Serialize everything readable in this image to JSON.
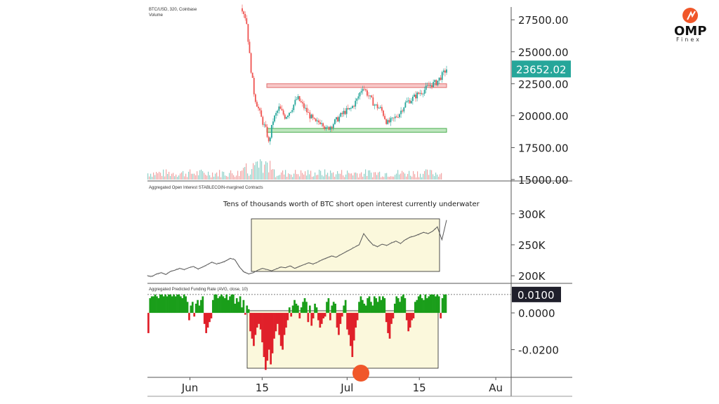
{
  "brand": {
    "name": "OMP",
    "sub": "Finex"
  },
  "chart_data": [
    {
      "type": "candlestick",
      "title": "BTC/USD, 320, Coinbase",
      "subtitle": "Volume",
      "ylim": [
        15000,
        28500
      ],
      "y_ticks": [
        "27500.00",
        "25000.00",
        "22500.00",
        "20000.00",
        "17500.00",
        "15000.00"
      ],
      "y_tick_values": [
        27500,
        25000,
        22500,
        20000,
        17500,
        15000
      ],
      "last_price": "23652.02",
      "last_price_value": 23652.02,
      "last_price_color": "#26a69a",
      "resistance_zone": [
        22200,
        22500
      ],
      "support_zone": [
        18700,
        19000
      ],
      "price_path": [
        [
          0.0,
          28400
        ],
        [
          0.02,
          27500
        ],
        [
          0.04,
          24000
        ],
        [
          0.06,
          21500
        ],
        [
          0.08,
          20500
        ],
        [
          0.1,
          19500
        ],
        [
          0.12,
          18700
        ],
        [
          0.13,
          17800
        ],
        [
          0.15,
          19600
        ],
        [
          0.18,
          20600
        ],
        [
          0.21,
          19900
        ],
        [
          0.24,
          20500
        ],
        [
          0.27,
          21400
        ],
        [
          0.3,
          20700
        ],
        [
          0.33,
          20000
        ],
        [
          0.36,
          19400
        ],
        [
          0.39,
          19600
        ],
        [
          0.41,
          18900
        ],
        [
          0.44,
          19300
        ],
        [
          0.47,
          19800
        ],
        [
          0.5,
          20300
        ],
        [
          0.53,
          20500
        ],
        [
          0.56,
          21200
        ],
        [
          0.59,
          22300
        ],
        [
          0.62,
          21500
        ],
        [
          0.65,
          20800
        ],
        [
          0.68,
          20500
        ],
        [
          0.71,
          19400
        ],
        [
          0.74,
          19700
        ],
        [
          0.77,
          20200
        ],
        [
          0.8,
          21000
        ],
        [
          0.83,
          21300
        ],
        [
          0.86,
          21700
        ],
        [
          0.89,
          22000
        ],
        [
          0.92,
          22400
        ],
        [
          0.95,
          22600
        ],
        [
          0.98,
          23200
        ],
        [
          1.0,
          23650
        ]
      ]
    },
    {
      "type": "line",
      "title": "Aggregated Open Interest STABLECOIN-margined Contracts",
      "annotation": "Tens of thousands worth of BTC short open interest currently underwater",
      "ylim": [
        190000,
        310000
      ],
      "y_ticks": [
        "300K",
        "250K",
        "200K"
      ],
      "y_tick_values": [
        300000,
        250000,
        200000
      ],
      "highlight_x": [
        0.35,
        0.97
      ],
      "series": [
        {
          "values": [
            200000,
            199000,
            203000,
            205000,
            202000,
            207000,
            209000,
            212000,
            210000,
            213000,
            215000,
            211000,
            214000,
            218000,
            222000,
            219000,
            221000,
            224000,
            228000,
            226000,
            214000,
            206000,
            203000,
            205000,
            209000,
            212000,
            210000,
            208000,
            211000,
            214000,
            213000,
            216000,
            212000,
            215000,
            218000,
            221000,
            219000,
            222000,
            226000,
            229000,
            232000,
            230000,
            234000,
            238000,
            242000,
            246000,
            250000,
            268000,
            258000,
            250000,
            247000,
            251000,
            249000,
            253000,
            256000,
            252000,
            258000,
            262000,
            264000,
            267000,
            270000,
            268000,
            272000,
            279000,
            258000,
            290000
          ]
        }
      ]
    },
    {
      "type": "bar",
      "title": "Aggregated Predicted Funding Rate (AVG, close, 10)",
      "ylim": [
        -0.032,
        0.013
      ],
      "y_ticks": [
        "0.0000",
        "-0.0200"
      ],
      "y_tick_values": [
        0.0,
        -0.02
      ],
      "last_value": "0.0100",
      "last_value_value": 0.01,
      "reference_line": 0.01,
      "highlight_x": [
        0.24,
        0.93
      ],
      "positive_color": "#1a9e1a",
      "negative_color": "#e0202a",
      "values": [
        -0.011,
        0.008,
        0.009,
        0.009,
        0.01,
        0.009,
        0.008,
        0.01,
        0.01,
        0.009,
        0.01,
        0.009,
        0.01,
        0.01,
        0.009,
        0.01,
        0.009,
        0.01,
        0.01,
        0.009,
        0.008,
        0.01,
        0.009,
        0.006,
        -0.004,
        0.004,
        0.006,
        -0.002,
        0.005,
        0.007,
        0.004,
        0.007,
        0.009,
        -0.006,
        -0.011,
        -0.008,
        -0.005,
        -0.003,
        0.007,
        0.01,
        0.01,
        0.008,
        0.009,
        0.01,
        0.009,
        0.008,
        0.01,
        0.007,
        0.009,
        0.01,
        0.01,
        0.005,
        0.008,
        0.006,
        0.009,
        0.003,
        0.007,
        -0.001,
        0.004,
        0.002,
        -0.01,
        -0.014,
        -0.018,
        -0.012,
        -0.008,
        -0.006,
        -0.009,
        -0.016,
        -0.024,
        -0.031,
        -0.026,
        -0.02,
        -0.028,
        -0.022,
        -0.014,
        -0.01,
        -0.006,
        -0.012,
        -0.018,
        -0.02,
        -0.012,
        -0.008,
        -0.004,
        0.003,
        -0.002,
        0.004,
        0.007,
        0.005,
        0.004,
        -0.003,
        0.003,
        0.006,
        0.008,
        0.006,
        -0.005,
        0.004,
        -0.007,
        -0.003,
        0.005,
        0.003,
        -0.004,
        -0.008,
        -0.006,
        -0.003,
        -0.002,
        0.006,
        0.008,
        -0.004,
        0.004,
        0.006,
        0.005,
        -0.008,
        -0.012,
        -0.006,
        -0.002,
        0.004,
        0.007,
        -0.009,
        -0.012,
        -0.018,
        -0.024,
        -0.015,
        -0.008,
        -0.004,
        0.006,
        0.009,
        0.007,
        0.005,
        0.004,
        0.008,
        0.009,
        0.006,
        0.004,
        0.009,
        0.008,
        0.006,
        0.009,
        0.007,
        0.009,
        0.008,
        -0.005,
        -0.011,
        -0.014,
        -0.006,
        -0.003,
        0.005,
        0.009,
        0.008,
        0.006,
        0.009,
        0.01,
        0.008,
        -0.004,
        -0.01,
        -0.008,
        -0.004,
        -0.003,
        0.006,
        0.007,
        0.009,
        0.01,
        0.008,
        0.007,
        0.01,
        0.008,
        0.009,
        0.01,
        0.01,
        0.01,
        0.009,
        0.01,
        0.009,
        -0.003,
        0.008,
        0.01,
        0.01
      ]
    }
  ],
  "x_axis": {
    "tick_labels": [
      "Jun",
      "15",
      "Jul",
      "15",
      "Au"
    ],
    "tick_positions": [
      0.1,
      0.27,
      0.47,
      0.64,
      0.82
    ]
  }
}
